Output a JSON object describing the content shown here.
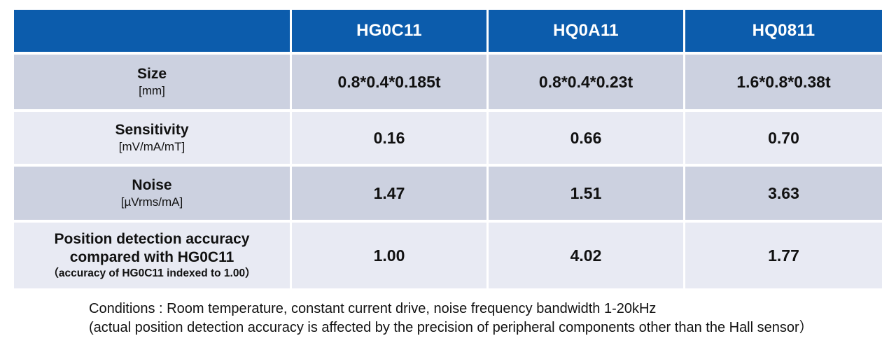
{
  "colors": {
    "header_bg": "#0c5cac",
    "header_text": "#ffffff",
    "row_dark_bg": "#ccd1e0",
    "row_light_bg": "#e8eaf3",
    "body_text": "#111111"
  },
  "table": {
    "columns": [
      "HG0C11",
      "HQ0A11",
      "HQ0811"
    ],
    "rows": [
      {
        "label": "Size",
        "unit": "[mm]",
        "values": [
          "0.8*0.4*0.185t",
          "0.8*0.4*0.23t",
          "1.6*0.8*0.38t"
        ]
      },
      {
        "label": "Sensitivity",
        "unit": "[mV/mA/mT]",
        "values": [
          "0.16",
          "0.66",
          "0.70"
        ]
      },
      {
        "label": "Noise",
        "unit": "[µVrms/mA]",
        "values": [
          "1.47",
          "1.51",
          "3.63"
        ]
      },
      {
        "label": "Position detection accuracy compared with HG0C11",
        "note": "（accuracy of HG0C11 indexed to 1.00）",
        "values": [
          "1.00",
          "4.02",
          "1.77"
        ]
      }
    ]
  },
  "footer": {
    "line1": "Conditions : Room temperature, constant current drive, noise frequency bandwidth 1-20kHz",
    "line2": "(actual position detection accuracy is affected by the precision of peripheral components other than the Hall sensor）"
  },
  "chart_data": {
    "type": "table",
    "title": "Hall sensor comparison",
    "columns": [
      "",
      "HG0C11",
      "HQ0A11",
      "HQ0811"
    ],
    "rows": [
      [
        "Size [mm]",
        "0.8*0.4*0.185t",
        "0.8*0.4*0.23t",
        "1.6*0.8*0.38t"
      ],
      [
        "Sensitivity [mV/mA/mT]",
        "0.16",
        "0.66",
        "0.70"
      ],
      [
        "Noise [µVrms/mA]",
        "1.47",
        "1.51",
        "3.63"
      ],
      [
        "Position detection accuracy compared with HG0C11 （accuracy of HG0C11 indexed to 1.00）",
        "1.00",
        "4.02",
        "1.77"
      ]
    ],
    "annotations": [
      "Conditions : Room temperature, constant current drive, noise frequency bandwidth 1-20kHz",
      "(actual position detection accuracy is affected by the precision of peripheral components other than the Hall sensor）"
    ]
  }
}
